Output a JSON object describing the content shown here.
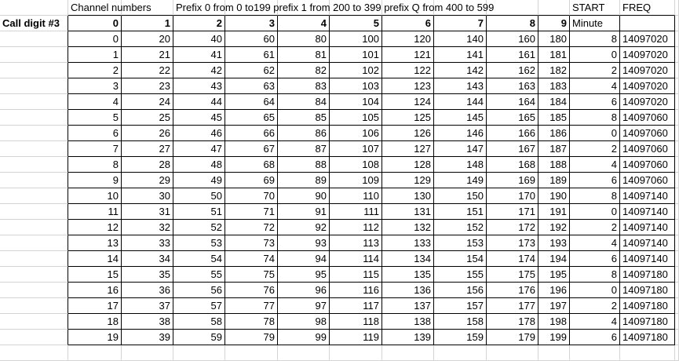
{
  "header": {
    "channel_numbers": "Channel numbers",
    "prefix_note": "Prefix 0 from 0 to199 prefix 1 from 200 to 399 prefix Q from 400 to 599",
    "start": "START",
    "freq": "FREQ"
  },
  "subheader": {
    "label": "Call digit #3",
    "digits": [
      0,
      1,
      2,
      3,
      4,
      5,
      6,
      7,
      8,
      9
    ],
    "minute": "Minute"
  },
  "table": {
    "rows": [
      [
        0,
        20,
        40,
        60,
        80,
        100,
        120,
        140,
        160,
        180,
        8,
        14097020
      ],
      [
        1,
        21,
        41,
        61,
        81,
        101,
        121,
        141,
        161,
        181,
        0,
        14097020
      ],
      [
        2,
        22,
        42,
        62,
        82,
        102,
        122,
        142,
        162,
        182,
        2,
        14097020
      ],
      [
        3,
        23,
        43,
        63,
        83,
        103,
        123,
        143,
        163,
        183,
        4,
        14097020
      ],
      [
        4,
        24,
        44,
        64,
        84,
        104,
        124,
        144,
        164,
        184,
        6,
        14097020
      ],
      [
        5,
        25,
        45,
        65,
        85,
        105,
        125,
        145,
        165,
        185,
        8,
        14097060
      ],
      [
        6,
        26,
        46,
        66,
        86,
        106,
        126,
        146,
        166,
        186,
        0,
        14097060
      ],
      [
        7,
        27,
        47,
        67,
        87,
        107,
        127,
        147,
        167,
        187,
        2,
        14097060
      ],
      [
        8,
        28,
        48,
        68,
        88,
        108,
        128,
        148,
        168,
        188,
        4,
        14097060
      ],
      [
        9,
        29,
        49,
        69,
        89,
        109,
        129,
        149,
        169,
        189,
        6,
        14097060
      ],
      [
        10,
        30,
        50,
        70,
        90,
        110,
        130,
        150,
        170,
        190,
        8,
        14097140
      ],
      [
        11,
        31,
        51,
        71,
        91,
        111,
        131,
        151,
        171,
        191,
        0,
        14097140
      ],
      [
        12,
        32,
        52,
        72,
        92,
        112,
        132,
        152,
        172,
        192,
        2,
        14097140
      ],
      [
        13,
        33,
        53,
        73,
        93,
        113,
        133,
        153,
        173,
        193,
        4,
        14097140
      ],
      [
        14,
        34,
        54,
        74,
        94,
        114,
        134,
        154,
        174,
        194,
        6,
        14097140
      ],
      [
        15,
        35,
        55,
        75,
        95,
        115,
        135,
        155,
        175,
        195,
        8,
        14097180
      ],
      [
        16,
        36,
        56,
        76,
        96,
        116,
        136,
        156,
        176,
        196,
        0,
        14097180
      ],
      [
        17,
        37,
        57,
        77,
        97,
        117,
        137,
        157,
        177,
        197,
        2,
        14097180
      ],
      [
        18,
        38,
        58,
        78,
        98,
        118,
        138,
        158,
        178,
        198,
        4,
        14097180
      ],
      [
        19,
        39,
        59,
        79,
        99,
        119,
        139,
        159,
        179,
        199,
        6,
        14097180
      ]
    ]
  }
}
